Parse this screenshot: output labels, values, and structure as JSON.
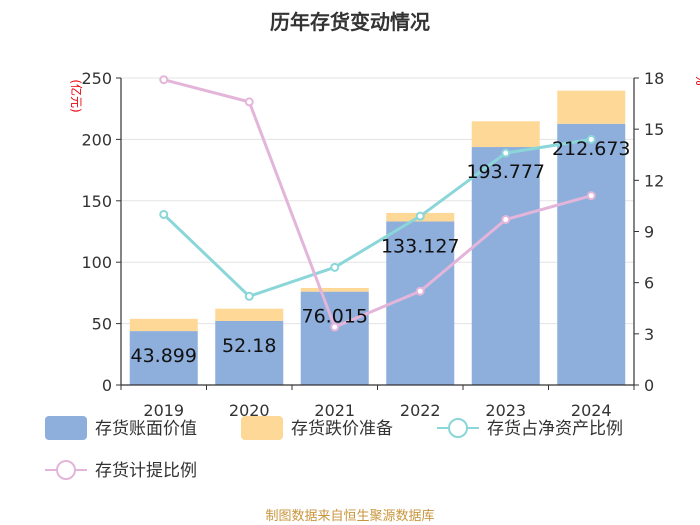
{
  "chart_data": {
    "type": "bar+line",
    "title": "历年存货变动情况",
    "categories": [
      "2019",
      "2020",
      "2021",
      "2022",
      "2023",
      "2024"
    ],
    "left_axis": {
      "unit": "(亿元)",
      "ylim": [
        0,
        250
      ],
      "ticks": [
        0,
        50,
        100,
        150,
        200,
        250
      ]
    },
    "right_axis": {
      "unit": "%",
      "ylim": [
        0,
        18
      ],
      "ticks": [
        0,
        3,
        6,
        9,
        12,
        15,
        18
      ]
    },
    "series": [
      {
        "name": "存货账面价值",
        "kind": "bar",
        "axis": "left",
        "color": "#8eaedc",
        "values": [
          43.899,
          52.18,
          76.015,
          133.127,
          193.777,
          212.673
        ],
        "labels": [
          "43.899",
          "52.18",
          "76.015",
          "133.127",
          "193.777",
          "212.673"
        ]
      },
      {
        "name": "存货跌价准备",
        "kind": "bar-stacked",
        "axis": "left",
        "color": "#fdd897",
        "values": [
          10,
          10,
          3,
          7,
          21,
          27
        ]
      },
      {
        "name": "存货占净资产比例",
        "kind": "line",
        "axis": "right",
        "color": "#8ad6d9",
        "values": [
          10.0,
          5.2,
          6.9,
          9.9,
          13.6,
          14.4
        ]
      },
      {
        "name": "存货计提比例",
        "kind": "line",
        "axis": "right",
        "color": "#e4b5da",
        "values": [
          17.9,
          16.6,
          3.4,
          5.5,
          9.7,
          11.1
        ]
      }
    ],
    "legend": [
      "存货账面价值",
      "存货跌价准备",
      "存货占净资产比例",
      "存货计提比例"
    ],
    "legend_position": "bottom",
    "grid": true
  },
  "source": "制图数据来自恒生聚源数据库"
}
